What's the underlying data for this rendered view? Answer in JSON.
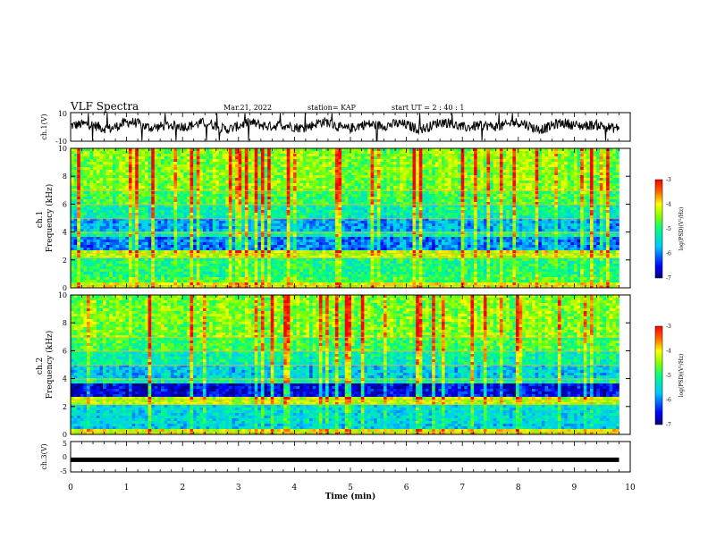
{
  "header": {
    "title": "VLF Spectra",
    "date": "Mar.21, 2022",
    "station": "station= KAP",
    "start_ut": "start  UT =  2 : 40 : 1"
  },
  "chart_data": [
    {
      "type": "line",
      "panel": "ch1-waveform",
      "ylabel": "ch.1(V)",
      "ylim": [
        -10,
        10
      ],
      "yticks": [
        "10",
        "-10"
      ],
      "xlim": [
        0,
        10
      ],
      "x_extent_min": 9.8,
      "description_series": "noisy voltage trace centered near +1 V"
    },
    {
      "type": "heatmap",
      "panel": "ch1-spectrogram",
      "ylabel": "ch.1\nFrequency  (kHz)",
      "ylim": [
        0,
        10
      ],
      "yticks": [
        "0",
        "2",
        "4",
        "6",
        "8",
        "10"
      ],
      "xlim": [
        0,
        10
      ],
      "colorbar": {
        "label": "log(PSD)(V²/Hz)",
        "range": [
          -7,
          -3
        ],
        "ticks": [
          "-3",
          "-4",
          "-5",
          "-6",
          "-7"
        ]
      }
    },
    {
      "type": "heatmap",
      "panel": "ch2-spectrogram",
      "ylabel": "ch.2\nFrequency  (kHz)",
      "ylim": [
        0,
        10
      ],
      "yticks": [
        "0",
        "2",
        "4",
        "6",
        "8",
        "10"
      ],
      "xlim": [
        0,
        10
      ],
      "colorbar": {
        "label": "log(PSD)(V²/Hz)",
        "range": [
          -7,
          -3
        ],
        "ticks": [
          "-3",
          "-4",
          "-5",
          "-6",
          "-7"
        ]
      }
    },
    {
      "type": "line",
      "panel": "ch3-waveform",
      "ylabel": "ch.3(V)",
      "ylim": [
        -5,
        5
      ],
      "yticks": [
        "5",
        "0",
        "-5"
      ],
      "xlim": [
        0,
        10
      ],
      "level": -1
    }
  ],
  "x_axis": {
    "label": "Time  (min)",
    "ticks": [
      "0",
      "1",
      "2",
      "3",
      "4",
      "5",
      "6",
      "7",
      "8",
      "9",
      "10"
    ]
  },
  "colors": {
    "high": "#ff0000",
    "mid_high": "#ffff00",
    "mid": "#00ff80",
    "low": "#00c8ff",
    "lowest": "#0000c8"
  }
}
